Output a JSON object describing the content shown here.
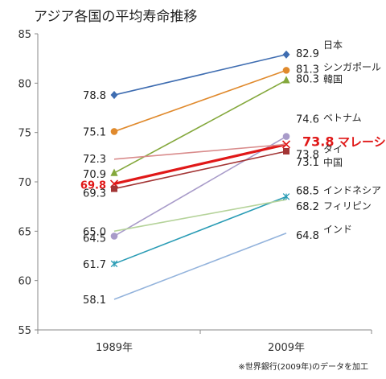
{
  "chart_data": {
    "type": "line",
    "title": "アジア各国の平均寿命推移",
    "x": [
      "1989年",
      "2009年"
    ],
    "ylim": [
      55,
      85
    ],
    "yticks": [
      55,
      60,
      65,
      70,
      75,
      80,
      85
    ],
    "grid": false,
    "legend": "right (end labels)",
    "source_note": "※世界銀行(2009年)のデータを加工",
    "series": [
      {
        "name": "日本",
        "values": [
          78.8,
          82.9
        ],
        "color": "#3f6db1",
        "marker": "diamond"
      },
      {
        "name": "シンガポール",
        "values": [
          75.1,
          81.3
        ],
        "color": "#e08a2d",
        "marker": "circle"
      },
      {
        "name": "韓国",
        "values": [
          70.9,
          80.3
        ],
        "color": "#84a83c",
        "marker": "triangle"
      },
      {
        "name": "ベトナム",
        "values": [
          64.5,
          74.6
        ],
        "color": "#a89bc9",
        "marker": "circle"
      },
      {
        "name": "マレーシア",
        "values": [
          69.8,
          73.8
        ],
        "color": "#e01818",
        "marker": "x",
        "highlight": true
      },
      {
        "name": "タイ",
        "values": [
          72.3,
          73.8
        ],
        "color": "#d98c8c",
        "marker": "none"
      },
      {
        "name": "中国",
        "values": [
          69.3,
          73.1
        ],
        "color": "#a33535",
        "marker": "square"
      },
      {
        "name": "インドネシア",
        "values": [
          61.7,
          68.5
        ],
        "color": "#2a9cb5",
        "marker": "star"
      },
      {
        "name": "フィリピン",
        "values": [
          65.0,
          68.2
        ],
        "color": "#b5d39a",
        "marker": "none"
      },
      {
        "name": "インド",
        "values": [
          58.1,
          64.8
        ],
        "color": "#93b3dc",
        "marker": "none"
      }
    ]
  }
}
